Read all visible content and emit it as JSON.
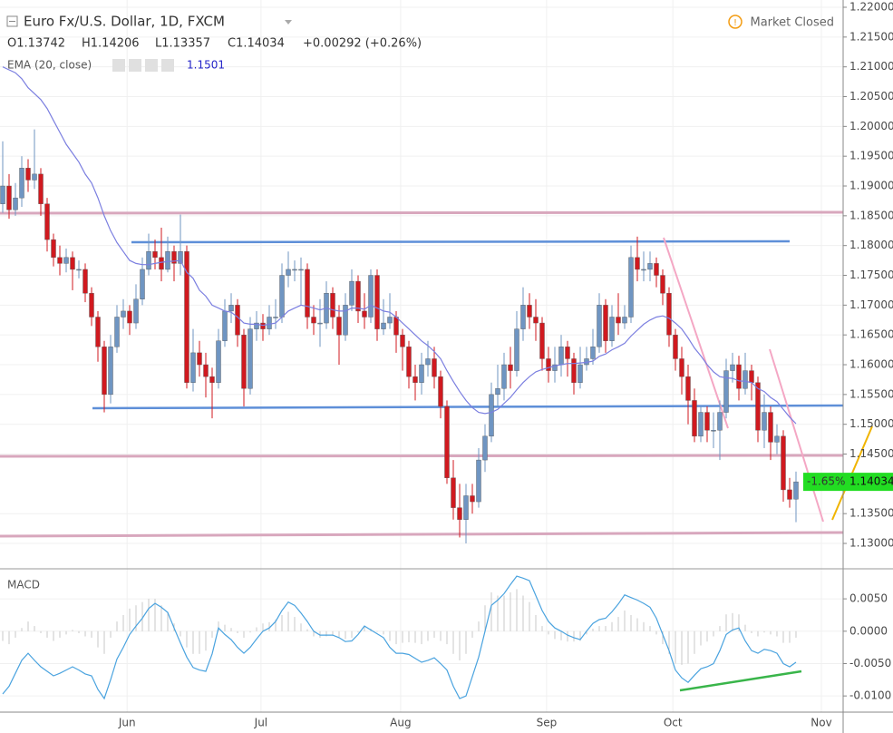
{
  "chart_data": {
    "type": "candlestick",
    "title": "Euro Fx/U.S. Dollar, 1D, FXCM",
    "status": "Market Closed",
    "ohlc_text": [
      "O1.13742",
      "H1.14206",
      "L1.13357",
      "C1.14034",
      "+0.00292 (+0.26%)"
    ],
    "ema_label": "EMA (20, close)",
    "ema_value_label": "1.1501",
    "macd_label": "MACD",
    "last_label": {
      "value": 1.14034,
      "label": "1.14034",
      "change": "-1.65%"
    },
    "up_color": "#6f95c2",
    "down_color": "#d0191f",
    "ema_color": "#7b7fe0",
    "macd_color": "#4aa3df",
    "hist_color": "#c8c8c8",
    "grid": true,
    "xlim": [
      -0.43,
      132.43
    ],
    "xticks": [
      {
        "value": 19.6,
        "label": "Jun"
      },
      {
        "value": 40.7,
        "label": "Jul"
      },
      {
        "value": 62.7,
        "label": "Aug"
      },
      {
        "value": 85.7,
        "label": "Sep"
      },
      {
        "value": 105.6,
        "label": "Oct"
      },
      {
        "value": 129,
        "label": "Nov"
      }
    ],
    "ylim": [
      1.12574,
      1.22122
    ],
    "yticks": [
      {
        "value": 1.22,
        "label": "1.22000"
      },
      {
        "value": 1.215,
        "label": "1.21500"
      },
      {
        "value": 1.21,
        "label": "1.21000"
      },
      {
        "value": 1.205,
        "label": "1.20500"
      },
      {
        "value": 1.2,
        "label": "1.20000"
      },
      {
        "value": 1.195,
        "label": "1.19500"
      },
      {
        "value": 1.19,
        "label": "1.19000"
      },
      {
        "value": 1.185,
        "label": "1.18500"
      },
      {
        "value": 1.18,
        "label": "1.18000"
      },
      {
        "value": 1.175,
        "label": "1.17500"
      },
      {
        "value": 1.17,
        "label": "1.17000"
      },
      {
        "value": 1.165,
        "label": "1.16500"
      },
      {
        "value": 1.16,
        "label": "1.16000"
      },
      {
        "value": 1.155,
        "label": "1.15500"
      },
      {
        "value": 1.15,
        "label": "1.15000"
      },
      {
        "value": 1.145,
        "label": "1.14500"
      },
      {
        "value": 1.135,
        "label": "1.13500"
      },
      {
        "value": 1.13,
        "label": "1.13000"
      }
    ],
    "y2lim": [
      -0.0125,
      0.0095
    ],
    "y2ticks": [
      {
        "value": 0.005,
        "label": "0.0050"
      },
      {
        "value": 0,
        "label": "0.0000"
      },
      {
        "value": -0.005,
        "label": "-0.0050"
      },
      {
        "value": -0.01,
        "label": "-0.0100"
      }
    ],
    "ohlc": [
      [
        1.187,
        1.1975,
        1.1855,
        1.19
      ],
      [
        1.19,
        1.192,
        1.1845,
        1.186
      ],
      [
        1.186,
        1.1905,
        1.185,
        1.188
      ],
      [
        1.188,
        1.195,
        1.1865,
        1.193
      ],
      [
        1.193,
        1.1945,
        1.189,
        1.191
      ],
      [
        1.191,
        1.1995,
        1.1895,
        1.192
      ],
      [
        1.192,
        1.193,
        1.185,
        1.187
      ],
      [
        1.187,
        1.188,
        1.179,
        1.181
      ],
      [
        1.181,
        1.182,
        1.1765,
        1.178
      ],
      [
        1.178,
        1.18,
        1.175,
        1.177
      ],
      [
        1.177,
        1.1795,
        1.1755,
        1.178
      ],
      [
        1.178,
        1.179,
        1.1725,
        1.176
      ],
      [
        1.176,
        1.1775,
        1.1745,
        1.176
      ],
      [
        1.176,
        1.177,
        1.1705,
        1.172
      ],
      [
        1.172,
        1.173,
        1.1665,
        1.168
      ],
      [
        1.168,
        1.169,
        1.1605,
        1.163
      ],
      [
        1.163,
        1.164,
        1.152,
        1.155
      ],
      [
        1.155,
        1.165,
        1.1535,
        1.163
      ],
      [
        1.163,
        1.17,
        1.162,
        1.168
      ],
      [
        1.168,
        1.171,
        1.166,
        1.169
      ],
      [
        1.169,
        1.17,
        1.165,
        1.167
      ],
      [
        1.167,
        1.1735,
        1.166,
        1.171
      ],
      [
        1.171,
        1.178,
        1.17,
        1.176
      ],
      [
        1.176,
        1.182,
        1.175,
        1.179
      ],
      [
        1.179,
        1.181,
        1.176,
        1.178
      ],
      [
        1.178,
        1.183,
        1.174,
        1.176
      ],
      [
        1.176,
        1.1815,
        1.1755,
        1.179
      ],
      [
        1.179,
        1.18,
        1.174,
        1.177
      ],
      [
        1.177,
        1.1852,
        1.175,
        1.179
      ],
      [
        1.179,
        1.18,
        1.156,
        1.157
      ],
      [
        1.157,
        1.166,
        1.1555,
        1.162
      ],
      [
        1.162,
        1.164,
        1.158,
        1.16
      ],
      [
        1.16,
        1.162,
        1.1545,
        1.158
      ],
      [
        1.158,
        1.1595,
        1.151,
        1.157
      ],
      [
        1.157,
        1.166,
        1.156,
        1.164
      ],
      [
        1.164,
        1.171,
        1.163,
        1.169
      ],
      [
        1.169,
        1.172,
        1.167,
        1.17
      ],
      [
        1.17,
        1.171,
        1.163,
        1.165
      ],
      [
        1.165,
        1.166,
        1.153,
        1.156
      ],
      [
        1.156,
        1.168,
        1.155,
        1.166
      ],
      [
        1.166,
        1.169,
        1.164,
        1.167
      ],
      [
        1.167,
        1.1685,
        1.164,
        1.166
      ],
      [
        1.166,
        1.17,
        1.165,
        1.168
      ],
      [
        1.168,
        1.171,
        1.166,
        1.168
      ],
      [
        1.168,
        1.177,
        1.167,
        1.175
      ],
      [
        1.175,
        1.179,
        1.173,
        1.176
      ],
      [
        1.176,
        1.1775,
        1.174,
        1.176
      ],
      [
        1.176,
        1.178,
        1.17,
        1.176
      ],
      [
        1.176,
        1.177,
        1.166,
        1.168
      ],
      [
        1.168,
        1.17,
        1.165,
        1.167
      ],
      [
        1.167,
        1.171,
        1.163,
        1.167
      ],
      [
        1.167,
        1.174,
        1.166,
        1.172
      ],
      [
        1.172,
        1.173,
        1.166,
        1.168
      ],
      [
        1.168,
        1.17,
        1.16,
        1.165
      ],
      [
        1.165,
        1.172,
        1.164,
        1.17
      ],
      [
        1.17,
        1.176,
        1.169,
        1.174
      ],
      [
        1.174,
        1.175,
        1.167,
        1.169
      ],
      [
        1.169,
        1.172,
        1.166,
        1.168
      ],
      [
        1.168,
        1.176,
        1.167,
        1.175
      ],
      [
        1.175,
        1.176,
        1.164,
        1.166
      ],
      [
        1.166,
        1.171,
        1.165,
        1.167
      ],
      [
        1.167,
        1.172,
        1.166,
        1.168
      ],
      [
        1.168,
        1.169,
        1.162,
        1.165
      ],
      [
        1.165,
        1.166,
        1.159,
        1.163
      ],
      [
        1.163,
        1.164,
        1.156,
        1.158
      ],
      [
        1.158,
        1.16,
        1.154,
        1.157
      ],
      [
        1.157,
        1.162,
        1.155,
        1.16
      ],
      [
        1.16,
        1.164,
        1.158,
        1.161
      ],
      [
        1.161,
        1.163,
        1.156,
        1.158
      ],
      [
        1.158,
        1.159,
        1.151,
        1.153
      ],
      [
        1.153,
        1.154,
        1.14,
        1.141
      ],
      [
        1.141,
        1.144,
        1.134,
        1.136
      ],
      [
        1.136,
        1.14,
        1.131,
        1.134
      ],
      [
        1.134,
        1.14,
        1.13,
        1.138
      ],
      [
        1.138,
        1.14,
        1.135,
        1.137
      ],
      [
        1.137,
        1.146,
        1.136,
        1.144
      ],
      [
        1.144,
        1.15,
        1.142,
        1.148
      ],
      [
        1.148,
        1.157,
        1.147,
        1.155
      ],
      [
        1.155,
        1.16,
        1.153,
        1.156
      ],
      [
        1.156,
        1.162,
        1.154,
        1.16
      ],
      [
        1.16,
        1.163,
        1.156,
        1.159
      ],
      [
        1.159,
        1.169,
        1.158,
        1.166
      ],
      [
        1.166,
        1.173,
        1.164,
        1.17
      ],
      [
        1.17,
        1.172,
        1.166,
        1.168
      ],
      [
        1.168,
        1.171,
        1.164,
        1.167
      ],
      [
        1.167,
        1.168,
        1.159,
        1.161
      ],
      [
        1.161,
        1.163,
        1.157,
        1.159
      ],
      [
        1.159,
        1.163,
        1.157,
        1.16
      ],
      [
        1.16,
        1.165,
        1.158,
        1.163
      ],
      [
        1.163,
        1.164,
        1.158,
        1.161
      ],
      [
        1.161,
        1.162,
        1.155,
        1.157
      ],
      [
        1.157,
        1.163,
        1.156,
        1.16
      ],
      [
        1.16,
        1.163,
        1.159,
        1.161
      ],
      [
        1.161,
        1.166,
        1.16,
        1.163
      ],
      [
        1.163,
        1.172,
        1.162,
        1.17
      ],
      [
        1.17,
        1.171,
        1.162,
        1.164
      ],
      [
        1.164,
        1.17,
        1.163,
        1.168
      ],
      [
        1.168,
        1.172,
        1.165,
        1.167
      ],
      [
        1.167,
        1.17,
        1.166,
        1.168
      ],
      [
        1.168,
        1.18,
        1.167,
        1.178
      ],
      [
        1.178,
        1.1815,
        1.174,
        1.176
      ],
      [
        1.176,
        1.179,
        1.174,
        1.176
      ],
      [
        1.176,
        1.179,
        1.174,
        1.177
      ],
      [
        1.177,
        1.178,
        1.173,
        1.175
      ],
      [
        1.175,
        1.176,
        1.17,
        1.172
      ],
      [
        1.172,
        1.173,
        1.163,
        1.165
      ],
      [
        1.165,
        1.166,
        1.159,
        1.161
      ],
      [
        1.161,
        1.163,
        1.155,
        1.158
      ],
      [
        1.158,
        1.16,
        1.15,
        1.154
      ],
      [
        1.154,
        1.156,
        1.147,
        1.148
      ],
      [
        1.148,
        1.153,
        1.147,
        1.152
      ],
      [
        1.152,
        1.153,
        1.147,
        1.149
      ],
      [
        1.149,
        1.152,
        1.146,
        1.149
      ],
      [
        1.149,
        1.154,
        1.144,
        1.152
      ],
      [
        1.152,
        1.161,
        1.151,
        1.159
      ],
      [
        1.159,
        1.162,
        1.157,
        1.16
      ],
      [
        1.16,
        1.1615,
        1.154,
        1.156
      ],
      [
        1.156,
        1.162,
        1.155,
        1.159
      ],
      [
        1.159,
        1.16,
        1.154,
        1.157
      ],
      [
        1.157,
        1.158,
        1.147,
        1.149
      ],
      [
        1.149,
        1.155,
        1.146,
        1.152
      ],
      [
        1.152,
        1.153,
        1.144,
        1.147
      ],
      [
        1.147,
        1.15,
        1.145,
        1.148
      ],
      [
        1.148,
        1.149,
        1.137,
        1.139
      ],
      [
        1.139,
        1.141,
        1.136,
        1.1374
      ],
      [
        1.13742,
        1.14206,
        1.13357,
        1.14034
      ]
    ],
    "ema": [
      1.21,
      1.2095,
      1.209,
      1.208,
      1.2065,
      1.2055,
      1.2045,
      1.203,
      1.201,
      1.199,
      1.197,
      1.1955,
      1.194,
      1.192,
      1.1905,
      1.188,
      1.185,
      1.1825,
      1.1805,
      1.179,
      1.1775,
      1.177,
      1.1768,
      1.1768,
      1.177,
      1.1772,
      1.1773,
      1.1774,
      1.1775,
      1.1755,
      1.1745,
      1.1725,
      1.1715,
      1.17,
      1.1695,
      1.169,
      1.1688,
      1.168,
      1.167,
      1.1668,
      1.1668,
      1.1666,
      1.1668,
      1.167,
      1.168,
      1.169,
      1.1695,
      1.17,
      1.1698,
      1.1695,
      1.1692,
      1.1695,
      1.1692,
      1.169,
      1.169,
      1.1695,
      1.1695,
      1.1693,
      1.17,
      1.1695,
      1.169,
      1.1688,
      1.168,
      1.167,
      1.166,
      1.165,
      1.164,
      1.1632,
      1.1622,
      1.161,
      1.159,
      1.1572,
      1.1555,
      1.154,
      1.1528,
      1.152,
      1.1518,
      1.152,
      1.1525,
      1.1535,
      1.1545,
      1.1558,
      1.157,
      1.158,
      1.1588,
      1.1592,
      1.1595,
      1.1598,
      1.16,
      1.1602,
      1.1602,
      1.1603,
      1.1604,
      1.1606,
      1.1614,
      1.1618,
      1.1625,
      1.163,
      1.1636,
      1.1648,
      1.1658,
      1.1668,
      1.1675,
      1.168,
      1.1682,
      1.1678,
      1.167,
      1.166,
      1.1645,
      1.1628,
      1.1615,
      1.16,
      1.1588,
      1.158,
      1.1578,
      1.1577,
      1.1573,
      1.1572,
      1.157,
      1.156,
      1.1555,
      1.1545,
      1.1538,
      1.1525,
      1.1512,
      1.1501
    ],
    "macd": [
      -0.0097,
      -0.0085,
      -0.0065,
      -0.0045,
      -0.0034,
      -0.0045,
      -0.0055,
      -0.0062,
      -0.0069,
      -0.0065,
      -0.006,
      -0.0055,
      -0.006,
      -0.0066,
      -0.0069,
      -0.009,
      -0.0104,
      -0.0075,
      -0.0043,
      -0.0025,
      -0.0005,
      0.0008,
      0.002,
      0.0035,
      0.0043,
      0.0037,
      0.0029,
      0.0005,
      -0.0018,
      -0.004,
      -0.0056,
      -0.006,
      -0.0062,
      -0.0035,
      0.0005,
      -0.0005,
      -0.0013,
      -0.0025,
      -0.0034,
      -0.0025,
      -0.0012,
      0,
      0.0005,
      0.0015,
      0.0032,
      0.0045,
      0.004,
      0.0028,
      0.0015,
      0,
      -0.0006,
      -0.0006,
      -0.0006,
      -0.001,
      -0.0016,
      -0.0015,
      -0.0005,
      0.0008,
      0.0002,
      -0.0004,
      -0.001,
      -0.0025,
      -0.0034,
      -0.0034,
      -0.0036,
      -0.0042,
      -0.0048,
      -0.0045,
      -0.0041,
      -0.005,
      -0.006,
      -0.0085,
      -0.0104,
      -0.01,
      -0.007,
      -0.004,
      0,
      0.004,
      0.0048,
      0.0058,
      0.0072,
      0.0085,
      0.0082,
      0.0078,
      0.0055,
      0.0032,
      0.0015,
      0.0005,
      0,
      -0.0006,
      -0.001,
      -0.0013,
      0,
      0.0012,
      0.0018,
      0.002,
      0.003,
      0.0042,
      0.0056,
      0.0052,
      0.0048,
      0.0043,
      0.0037,
      0.002,
      -0.0005,
      -0.003,
      -0.006,
      -0.0072,
      -0.0079,
      -0.0068,
      -0.0058,
      -0.0055,
      -0.005,
      -0.003,
      -0.0005,
      0.0002,
      0.0005,
      -0.0015,
      -0.003,
      -0.0034,
      -0.0028,
      -0.003,
      -0.0034,
      -0.005,
      -0.0055,
      -0.0048
    ],
    "hist": [
      -0.0015,
      -0.002,
      -0.001,
      0.0005,
      0.0015,
      0.0008,
      -0.0003,
      -0.001,
      -0.0015,
      -0.001,
      -0.0005,
      0.0002,
      -0.0003,
      -0.0008,
      -0.001,
      -0.0025,
      -0.0035,
      -0.001,
      0.0015,
      0.0025,
      0.0035,
      0.004,
      0.0045,
      0.005,
      0.005,
      0.004,
      0.003,
      0.0012,
      -0.0008,
      -0.0025,
      -0.0035,
      -0.0035,
      -0.003,
      -0.001,
      0.0015,
      0.001,
      0.0005,
      -0.0003,
      -0.001,
      -0.0002,
      0.0006,
      0.0012,
      0.0014,
      0.0018,
      0.0025,
      0.003,
      0.0022,
      0.0012,
      0.0003,
      -0.0008,
      -0.001,
      -0.0008,
      -0.0007,
      -0.0009,
      -0.0012,
      -0.001,
      -0.0002,
      0.0008,
      0.0004,
      -0.0001,
      -0.0005,
      -0.0015,
      -0.002,
      -0.0018,
      -0.0017,
      -0.0018,
      -0.002,
      -0.0015,
      -0.001,
      -0.0015,
      -0.002,
      -0.0035,
      -0.0045,
      -0.0035,
      -0.001,
      0.0015,
      0.004,
      0.006,
      0.0055,
      0.0055,
      0.006,
      0.0065,
      0.0055,
      0.0045,
      0.0025,
      0.0008,
      -0.0005,
      -0.0012,
      -0.0014,
      -0.0016,
      -0.0016,
      -0.0015,
      -0.0005,
      0.0004,
      0.0008,
      0.0008,
      0.0014,
      0.0022,
      0.0032,
      0.0025,
      0.002,
      0.0014,
      0.0008,
      -0.0005,
      -0.002,
      -0.0035,
      -0.005,
      -0.0052,
      -0.005,
      -0.0035,
      -0.0022,
      -0.0016,
      -0.0008,
      0.0008,
      0.0026,
      0.0028,
      0.0026,
      0.001,
      -0.0003,
      -0.0008,
      -0.0002,
      -0.0005,
      -0.0008,
      -0.0018,
      -0.0018,
      -0.001
    ]
  }
}
